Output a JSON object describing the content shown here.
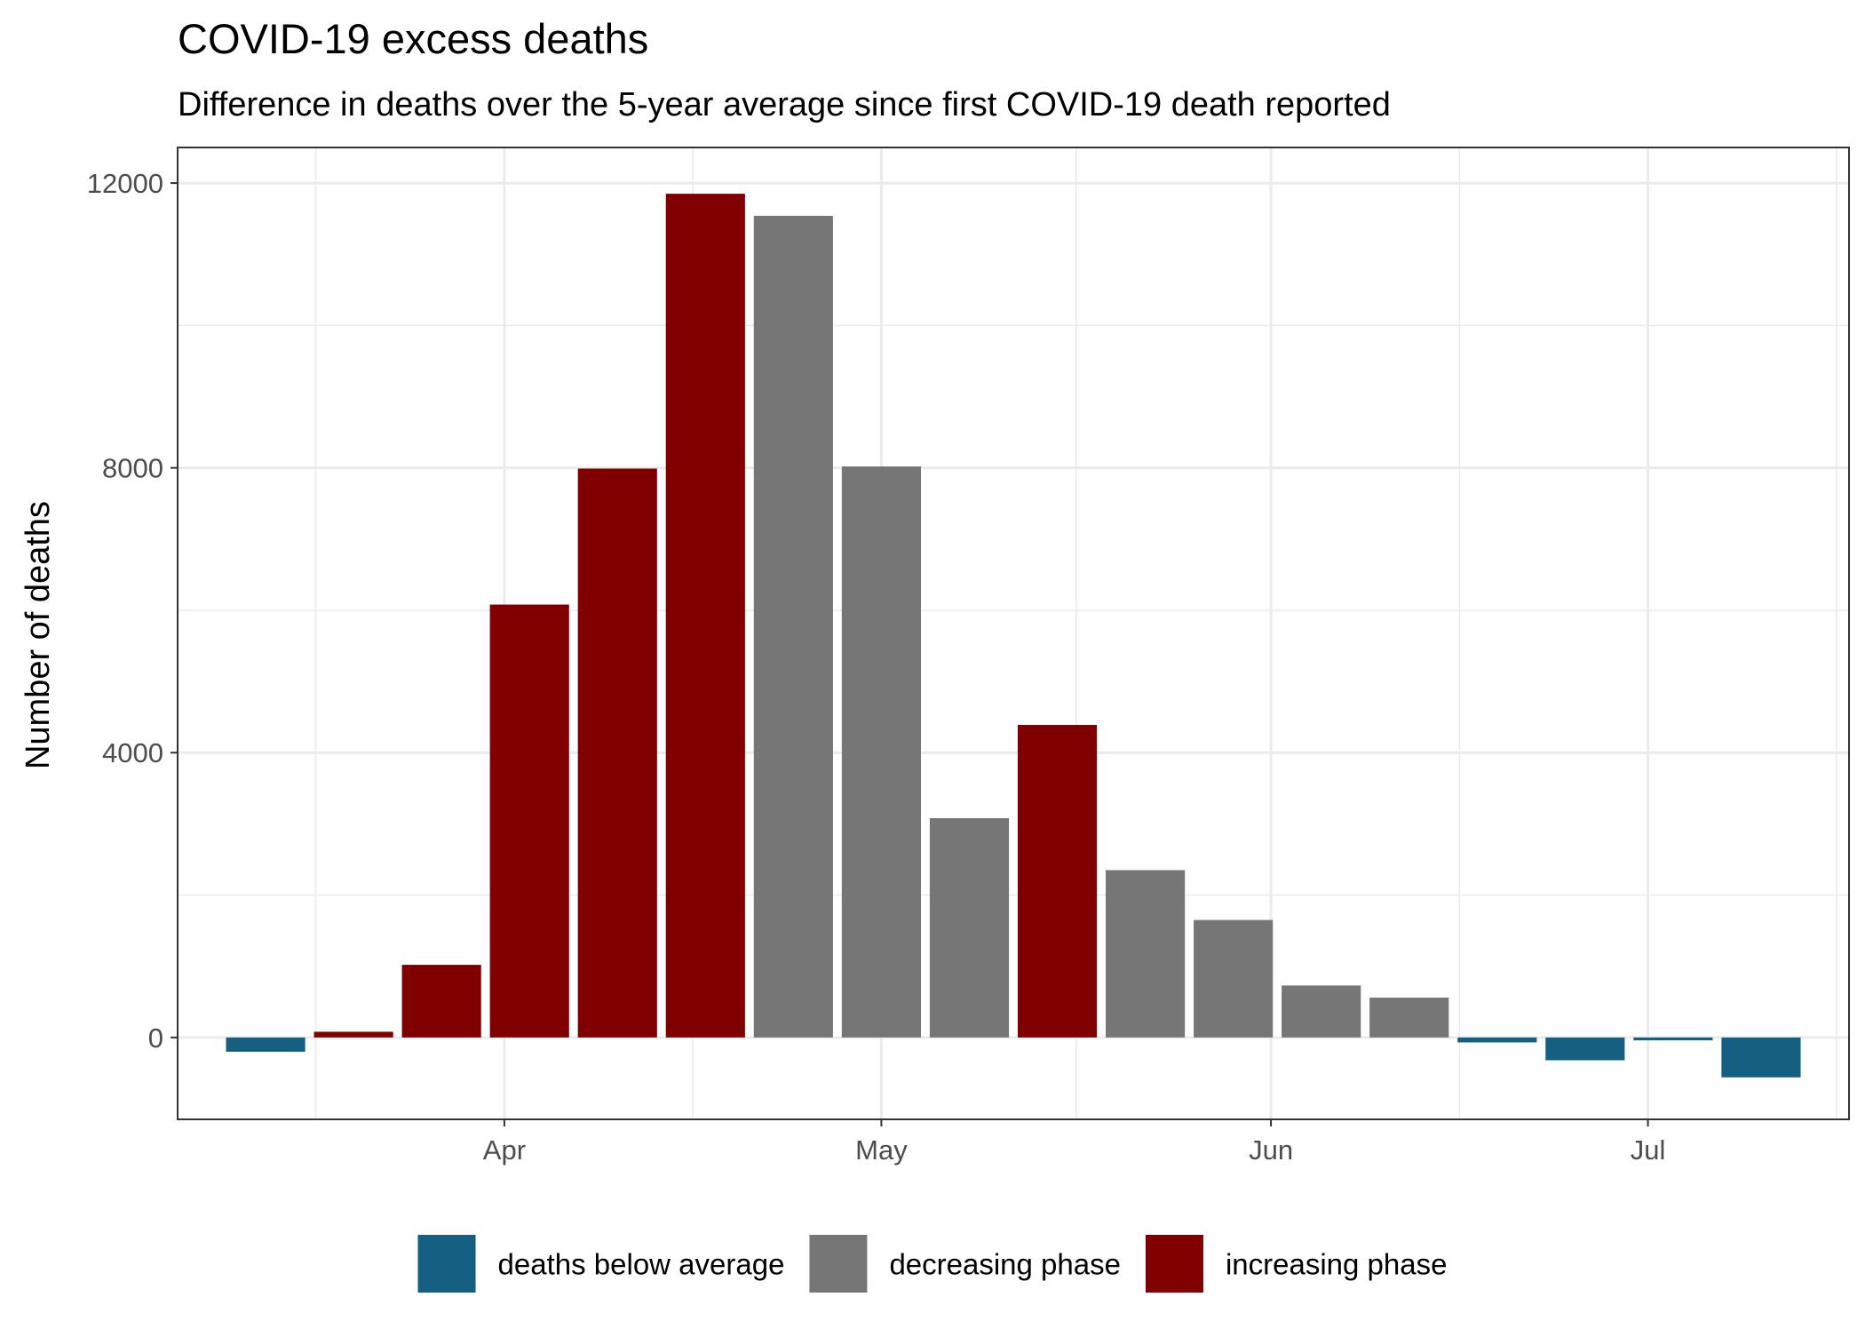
{
  "chart_data": {
    "type": "bar",
    "title": "COVID-19 excess deaths",
    "subtitle": "Difference in deaths over the 5-year average since first COVID-19 death reported",
    "xlabel": "",
    "ylabel": "Number of deaths",
    "x_axis": "date",
    "xlim": [
      "2020-03-06",
      "2020-07-17"
    ],
    "ylim": [
      -1150,
      12500
    ],
    "x_ticks": [
      {
        "date": "2020-04-01",
        "label": "Apr"
      },
      {
        "date": "2020-05-01",
        "label": "May"
      },
      {
        "date": "2020-06-01",
        "label": "Jun"
      },
      {
        "date": "2020-07-01",
        "label": "Jul"
      }
    ],
    "y_ticks": [
      0,
      4000,
      8000,
      12000
    ],
    "grid": true,
    "legend_position": "bottom",
    "colors": {
      "deaths below average": "#155f83",
      "decreasing phase": "#767676",
      "increasing phase": "#800000"
    },
    "legend": [
      "deaths below average",
      "decreasing phase",
      "increasing phase"
    ],
    "bars": [
      {
        "date": "2020-03-13",
        "value": -200,
        "category": "deaths below average"
      },
      {
        "date": "2020-03-20",
        "value": 80,
        "category": "increasing phase"
      },
      {
        "date": "2020-03-27",
        "value": 1020,
        "category": "increasing phase"
      },
      {
        "date": "2020-04-03",
        "value": 6080,
        "category": "increasing phase"
      },
      {
        "date": "2020-04-10",
        "value": 7990,
        "category": "increasing phase"
      },
      {
        "date": "2020-04-17",
        "value": 11850,
        "category": "increasing phase"
      },
      {
        "date": "2020-04-24",
        "value": 11540,
        "category": "decreasing phase"
      },
      {
        "date": "2020-05-01",
        "value": 8020,
        "category": "decreasing phase"
      },
      {
        "date": "2020-05-08",
        "value": 3080,
        "category": "decreasing phase"
      },
      {
        "date": "2020-05-15",
        "value": 4390,
        "category": "increasing phase"
      },
      {
        "date": "2020-05-22",
        "value": 2350,
        "category": "decreasing phase"
      },
      {
        "date": "2020-05-29",
        "value": 1650,
        "category": "decreasing phase"
      },
      {
        "date": "2020-06-05",
        "value": 730,
        "category": "decreasing phase"
      },
      {
        "date": "2020-06-12",
        "value": 560,
        "category": "decreasing phase"
      },
      {
        "date": "2020-06-19",
        "value": -70,
        "category": "deaths below average"
      },
      {
        "date": "2020-06-26",
        "value": -320,
        "category": "deaths below average"
      },
      {
        "date": "2020-07-03",
        "value": -40,
        "category": "deaths below average"
      },
      {
        "date": "2020-07-10",
        "value": -560,
        "category": "deaths below average"
      }
    ]
  }
}
